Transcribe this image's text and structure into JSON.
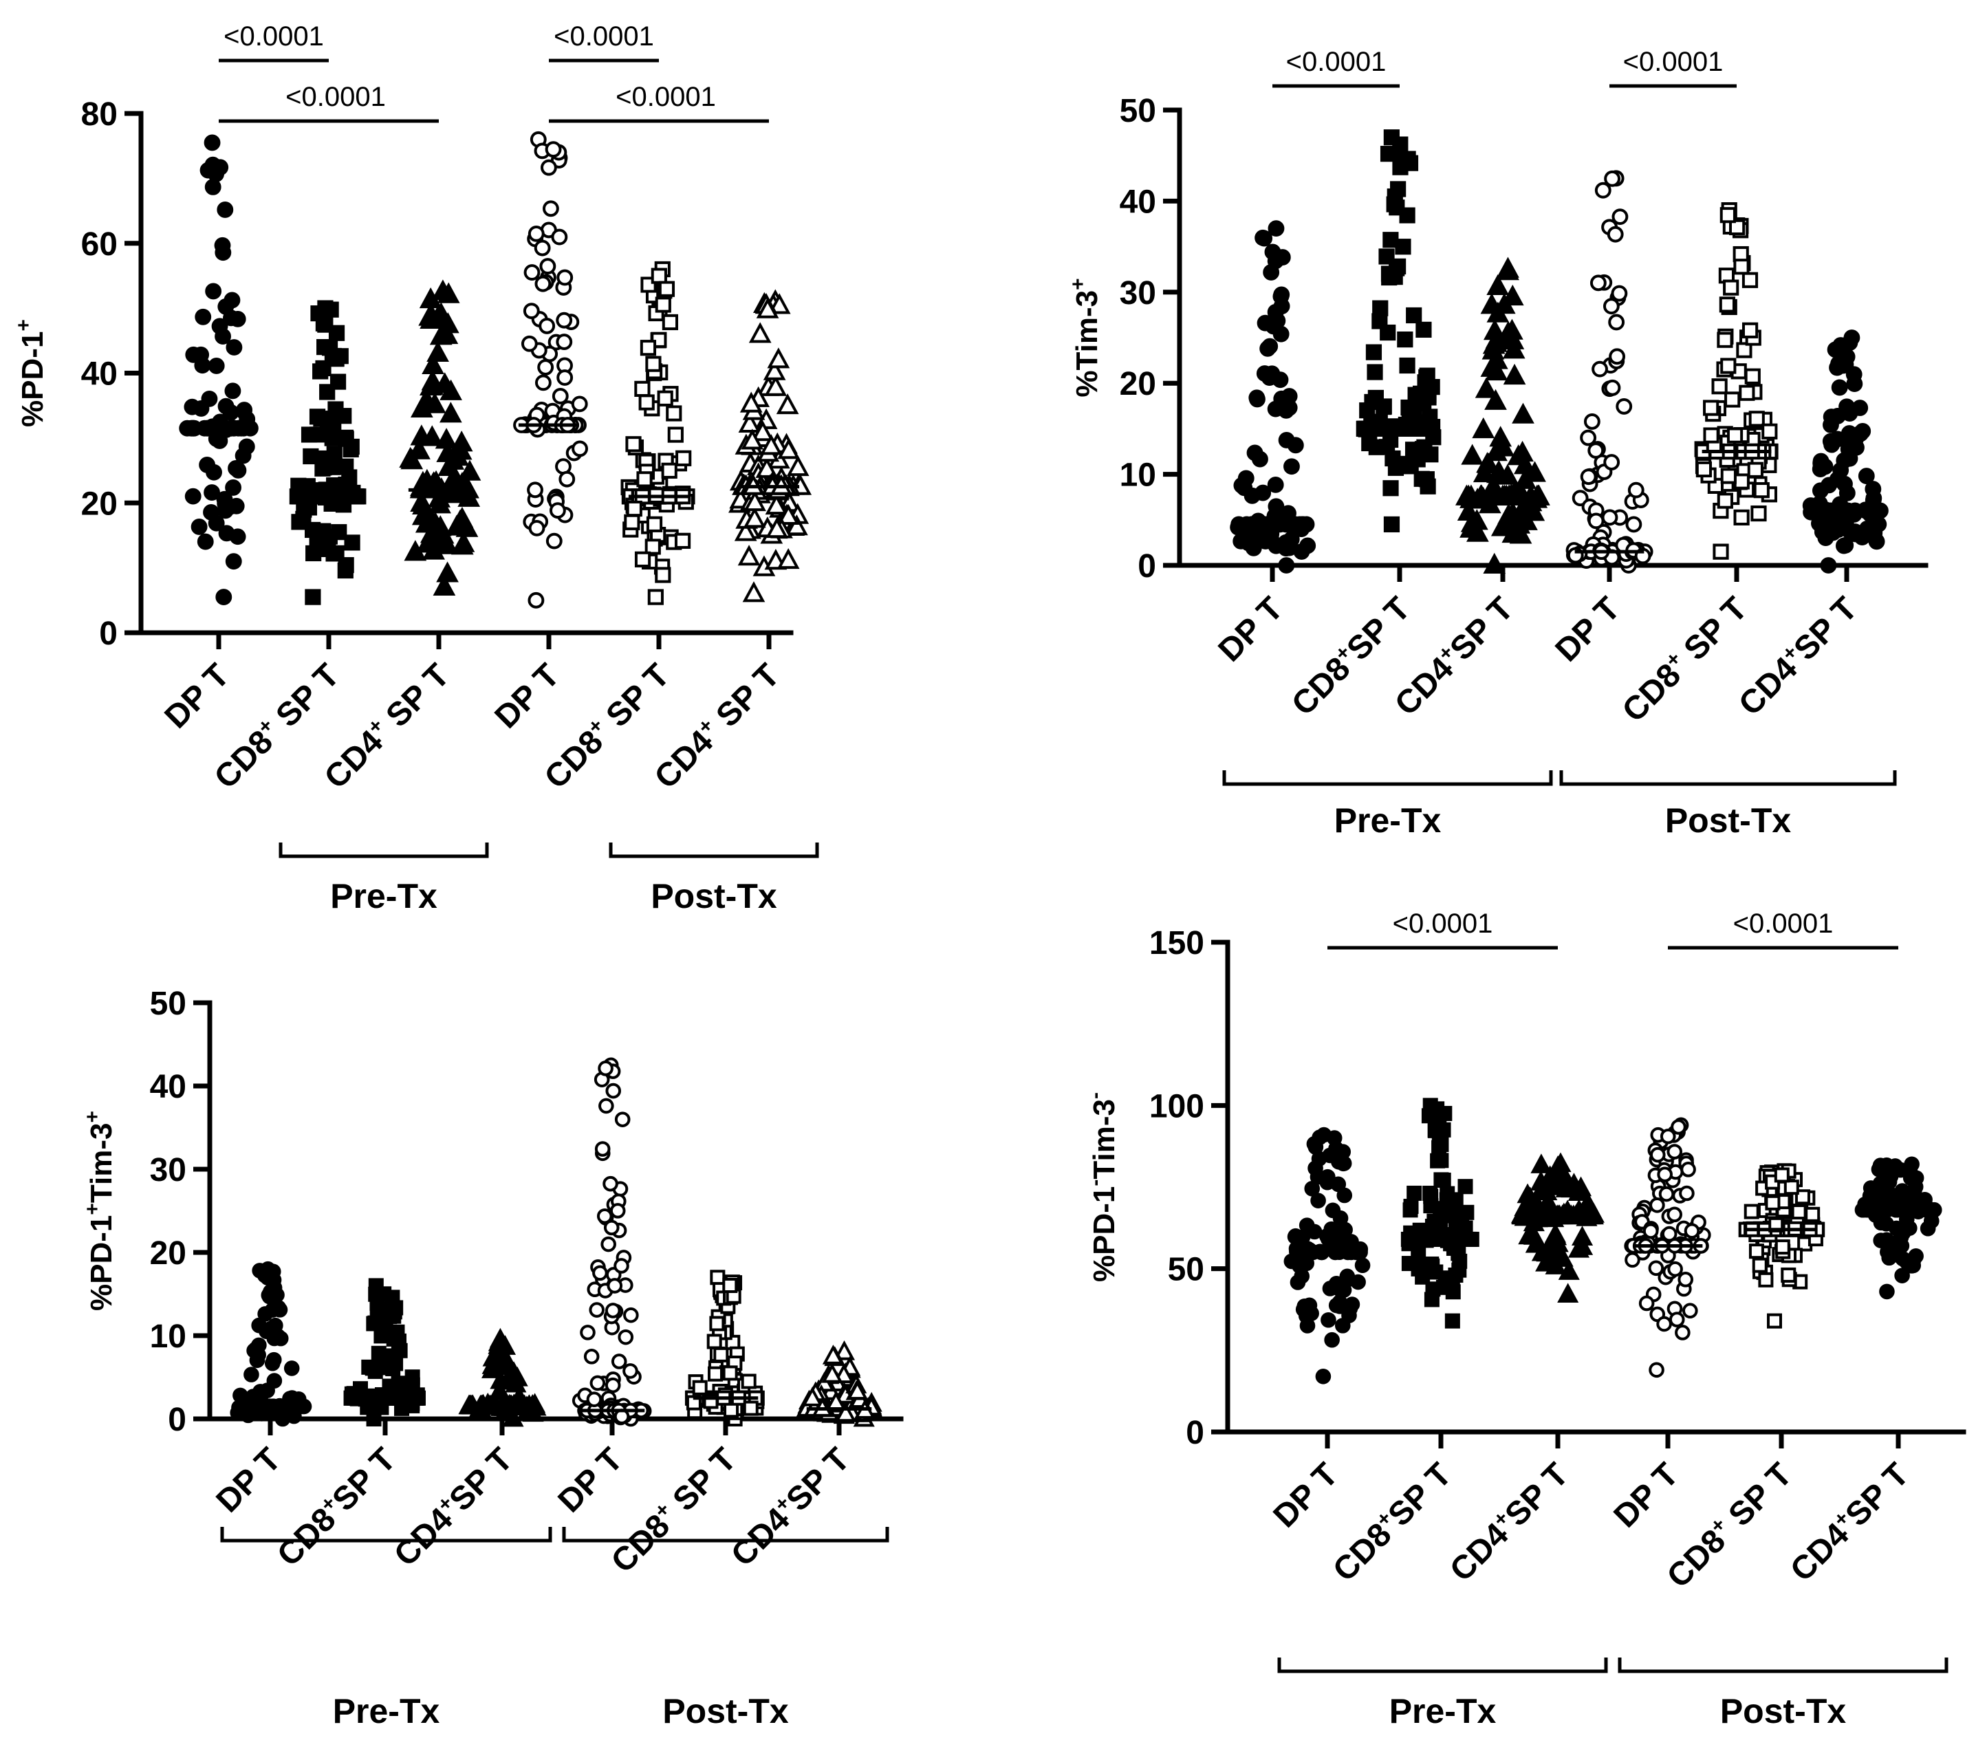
{
  "figure": {
    "description_free": true,
    "marker_color": "#000000",
    "background_color": "#ffffff"
  },
  "chart_data": [
    {
      "id": "pd1",
      "type": "scatter",
      "title": "",
      "ylabel_main": "%PD-1",
      "ylabel_sup": "+",
      "ylim": [
        0,
        80
      ],
      "yticks": [
        0,
        20,
        40,
        60,
        80
      ],
      "categories": [
        {
          "main": "DP T",
          "sup": "",
          "tail": "",
          "marker": "circle",
          "filled": true,
          "median": 31.5,
          "min": 5.5,
          "max": 75.5,
          "count": 90
        },
        {
          "main": "CD8",
          "sup": "+",
          "tail": " SP T",
          "marker": "square",
          "filled": true,
          "median": 21,
          "min": 5.5,
          "max": 50,
          "count": 100
        },
        {
          "main": "CD4",
          "sup": "+",
          "tail": " SP T",
          "marker": "triangle",
          "filled": true,
          "median": 22,
          "min": 7,
          "max": 52.5,
          "count": 95
        },
        {
          "main": "DP T",
          "sup": "",
          "tail": "",
          "marker": "circle",
          "filled": false,
          "median": 32,
          "min": 5,
          "max": 76,
          "count": 95
        },
        {
          "main": "CD8",
          "sup": "+",
          "tail": " SP T",
          "marker": "square",
          "filled": false,
          "median": 21,
          "min": 5.5,
          "max": 56,
          "count": 100
        },
        {
          "main": "CD4",
          "sup": "+",
          "tail": " SP T",
          "marker": "triangle",
          "filled": false,
          "median": 22.5,
          "min": 6,
          "max": 51,
          "count": 100
        }
      ],
      "groups": [
        {
          "label": "Pre-Tx",
          "from": 1,
          "to": 2
        },
        {
          "label": "Post-Tx",
          "from": 4,
          "to": 5
        }
      ],
      "comparisons": [
        {
          "from": 0,
          "to": 1,
          "p": "<0.0001",
          "level": 0
        },
        {
          "from": 0,
          "to": 2,
          "p": "<0.0001",
          "level": 1
        },
        {
          "from": 3,
          "to": 4,
          "p": "<0.0001",
          "level": 0
        },
        {
          "from": 3,
          "to": 5,
          "p": "<0.0001",
          "level": 1
        }
      ]
    },
    {
      "id": "tim3",
      "type": "scatter",
      "title": "",
      "ylabel_main": "%Tim-3",
      "ylabel_sup": "+",
      "ylim": [
        0,
        50
      ],
      "yticks": [
        0,
        10,
        20,
        30,
        40,
        50
      ],
      "categories": [
        {
          "main": "DP T",
          "sup": "",
          "tail": "",
          "marker": "circle",
          "filled": true,
          "median": 4.5,
          "min": 0,
          "max": 37,
          "count": 95
        },
        {
          "main": "CD8",
          "sup": "+",
          "tail": "SP T",
          "marker": "square",
          "filled": true,
          "median": 15,
          "min": 4.5,
          "max": 47,
          "count": 100
        },
        {
          "main": "CD4",
          "sup": "+",
          "tail": "SP T",
          "marker": "triangle",
          "filled": true,
          "median": 7.5,
          "min": 0,
          "max": 32.5,
          "count": 90
        },
        {
          "main": "DP T",
          "sup": "",
          "tail": "",
          "marker": "circle",
          "filled": false,
          "median": 1.5,
          "min": 0,
          "max": 42.5,
          "count": 95
        },
        {
          "main": "CD8",
          "sup": "+",
          "tail": " SP T",
          "marker": "square",
          "filled": false,
          "median": 12.5,
          "min": 1.5,
          "max": 39,
          "count": 110
        },
        {
          "main": "CD4",
          "sup": "+",
          "tail": "SP T",
          "marker": "circle",
          "filled": true,
          "median": 6,
          "min": 0,
          "max": 25,
          "count": 110
        }
      ],
      "groups": [
        {
          "label": "Pre-Tx",
          "from": 0,
          "to": 2
        },
        {
          "label": "Post-Tx",
          "from": 3,
          "to": 5
        }
      ],
      "comparisons": [
        {
          "from": 0,
          "to": 1,
          "p": "<0.0001",
          "level": 0
        },
        {
          "from": 3,
          "to": 4,
          "p": "<0.0001",
          "level": 0
        }
      ]
    },
    {
      "id": "pd1tim3",
      "type": "scatter",
      "title": "",
      "ylabel_main": "%PD-1",
      "ylabel_sup": "+",
      "ylabel_mid": "Tim-3",
      "ylabel_sup2": "+",
      "ylim": [
        0,
        50
      ],
      "yticks": [
        0,
        10,
        20,
        30,
        40,
        50
      ],
      "categories": [
        {
          "main": "DP T",
          "sup": "",
          "tail": "",
          "marker": "circle",
          "filled": true,
          "median": 1.5,
          "min": 0,
          "max": 18,
          "count": 95
        },
        {
          "main": "CD8",
          "sup": "+",
          "tail": "SP T",
          "marker": "square",
          "filled": true,
          "median": 2.5,
          "min": 0,
          "max": 16,
          "count": 95
        },
        {
          "main": "CD4",
          "sup": "+",
          "tail": "SP T",
          "marker": "triangle",
          "filled": true,
          "median": 1.5,
          "min": 0,
          "max": 9.5,
          "count": 70
        },
        {
          "main": "DP T",
          "sup": "",
          "tail": "",
          "marker": "circle",
          "filled": false,
          "median": 1,
          "min": 0,
          "max": 42.5,
          "count": 100
        },
        {
          "main": "CD8",
          "sup": "+",
          "tail": " SP T",
          "marker": "square",
          "filled": false,
          "median": 2.5,
          "min": 0,
          "max": 17,
          "count": 100
        },
        {
          "main": "CD4",
          "sup": "+",
          "tail": "SP T",
          "marker": "triangle",
          "filled": false,
          "median": 1.2,
          "min": 0,
          "max": 8,
          "count": 90
        }
      ],
      "groups": [
        {
          "label": "Pre-Tx",
          "from": 0,
          "to": 2
        },
        {
          "label": "Post-Tx",
          "from": 3,
          "to": 5
        }
      ],
      "comparisons": []
    },
    {
      "id": "pd1negtim3neg",
      "type": "scatter",
      "title": "",
      "ylabel_main": "%PD-1",
      "ylabel_sup": "-",
      "ylabel_mid": "Tim-3",
      "ylabel_sup2": "-",
      "ylim": [
        0,
        150
      ],
      "yticks": [
        0,
        50,
        100,
        150
      ],
      "categories": [
        {
          "main": "DP T",
          "sup": "",
          "tail": "",
          "marker": "circle",
          "filled": true,
          "median": 55,
          "min": 17,
          "max": 91,
          "count": 95
        },
        {
          "main": "CD8",
          "sup": "+",
          "tail": "SP T",
          "marker": "square",
          "filled": true,
          "median": 59,
          "min": 34,
          "max": 100,
          "count": 100
        },
        {
          "main": "CD4",
          "sup": "+",
          "tail": "SP T",
          "marker": "triangle",
          "filled": true,
          "median": 66,
          "min": 42,
          "max": 82,
          "count": 95
        },
        {
          "main": "DP T",
          "sup": "",
          "tail": "",
          "marker": "circle",
          "filled": false,
          "median": 57,
          "min": 19,
          "max": 94,
          "count": 100
        },
        {
          "main": "CD8",
          "sup": "+",
          "tail": " SP T",
          "marker": "square",
          "filled": false,
          "median": 62,
          "min": 34,
          "max": 80,
          "count": 105
        },
        {
          "main": "CD4",
          "sup": "+",
          "tail": "SP T",
          "marker": "circle",
          "filled": true,
          "median": 68,
          "min": 43,
          "max": 82,
          "count": 105
        }
      ],
      "groups": [
        {
          "label": "Pre-Tx",
          "from": 0,
          "to": 2
        },
        {
          "label": "Post-Tx",
          "from": 3,
          "to": 5
        }
      ],
      "comparisons": [
        {
          "from": 0,
          "to": 2,
          "p": "<0.0001",
          "level": 0
        },
        {
          "from": 3,
          "to": 5,
          "p": "<0.0001",
          "level": 0
        }
      ]
    }
  ]
}
